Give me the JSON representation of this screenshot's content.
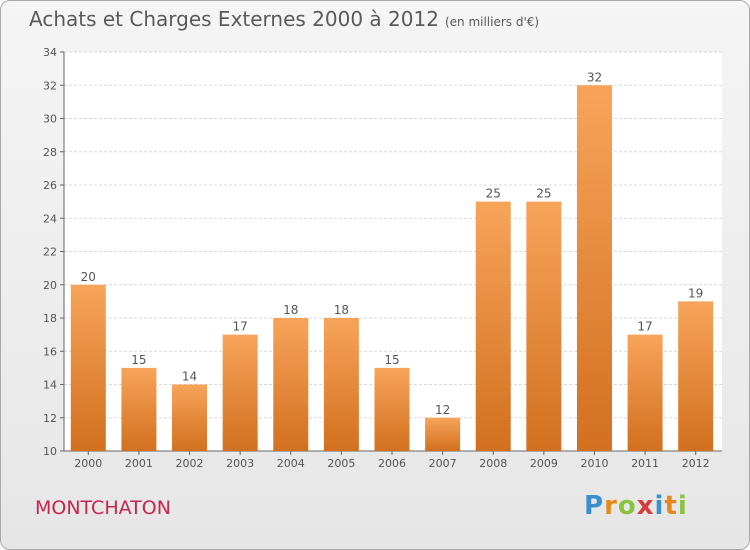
{
  "title": "Achats et Charges Externes 2000 à 2012",
  "subtitle": "(en milliers d'€)",
  "commune": "MONTCHATON",
  "logo": {
    "letters": [
      "P",
      "r",
      "o",
      "x",
      "i",
      "t",
      "i"
    ],
    "colors": [
      "#3a8fd1",
      "#e58a1f",
      "#8ac33e",
      "#d93a3a",
      "#3a8fd1",
      "#e58a1f",
      "#8ac33e"
    ]
  },
  "colors": {
    "bar_top": "#f7a45a",
    "bar_bottom": "#d2701e",
    "grid": "#d9d9d9",
    "text": "#555555"
  },
  "chart_data": {
    "type": "bar",
    "title": "Achats et Charges Externes 2000 à 2012",
    "subtitle": "(en milliers d'€)",
    "categories": [
      "2000",
      "2001",
      "2002",
      "2003",
      "2004",
      "2005",
      "2006",
      "2007",
      "2008",
      "2009",
      "2010",
      "2011",
      "2012"
    ],
    "values": [
      20,
      15,
      14,
      17,
      18,
      18,
      15,
      12,
      25,
      25,
      32,
      17,
      19
    ],
    "ylim": [
      10,
      34
    ],
    "yticks": [
      10,
      12,
      14,
      16,
      18,
      20,
      22,
      24,
      26,
      28,
      30,
      32,
      34
    ],
    "grid": true
  }
}
